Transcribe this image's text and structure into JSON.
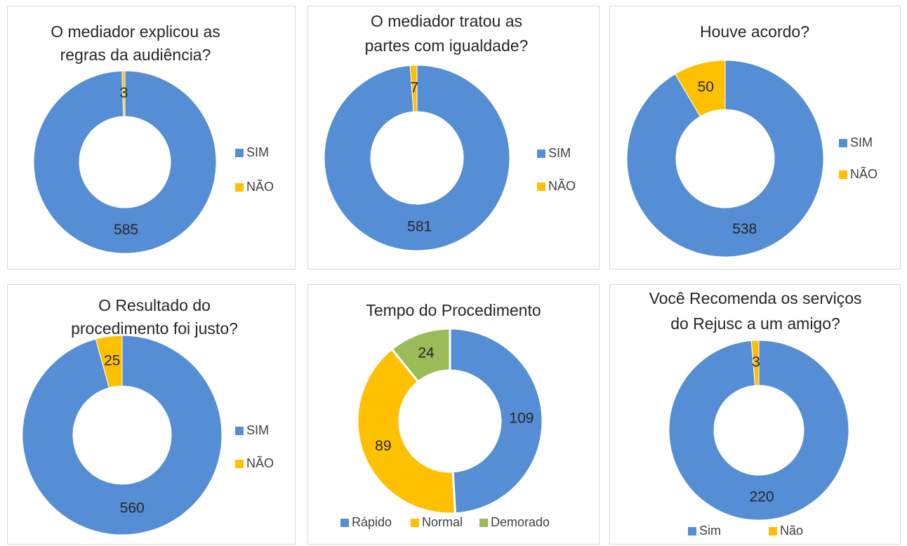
{
  "chart_data": [
    {
      "type": "donut",
      "title": [
        "O mediador explicou as",
        "regras da audiência?"
      ],
      "categories": [
        "SIM",
        "NÃO"
      ],
      "values": [
        585,
        3
      ],
      "colors": [
        "#558ed5",
        "#ffc000"
      ],
      "legend": "right"
    },
    {
      "type": "donut",
      "title": [
        "O mediador tratou as",
        "partes com igualdade?"
      ],
      "categories": [
        "SIM",
        "NÃO"
      ],
      "values": [
        581,
        7
      ],
      "colors": [
        "#558ed5",
        "#ffc000"
      ],
      "legend": "right"
    },
    {
      "type": "donut",
      "title": [
        "Houve acordo?"
      ],
      "categories": [
        "SIM",
        "NÃO"
      ],
      "values": [
        538,
        50
      ],
      "colors": [
        "#558ed5",
        "#ffc000"
      ],
      "legend": "right"
    },
    {
      "type": "donut",
      "title": [
        "O Resultado do",
        "procedimento foi justo?"
      ],
      "categories": [
        "SIM",
        "NÃO"
      ],
      "values": [
        560,
        25
      ],
      "colors": [
        "#558ed5",
        "#ffc000"
      ],
      "legend": "right"
    },
    {
      "type": "donut",
      "title": [
        "Tempo do Procedimento"
      ],
      "categories": [
        "Rápido",
        "Normal",
        "Demorado"
      ],
      "values": [
        109,
        89,
        24
      ],
      "colors": [
        "#558ed5",
        "#ffc000",
        "#9bbb59"
      ],
      "legend": "bottom"
    },
    {
      "type": "donut",
      "title": [
        "Você Recomenda os serviços",
        "do Rejusc a um amigo?"
      ],
      "categories": [
        "Sim",
        "Não"
      ],
      "values": [
        220,
        3
      ],
      "colors": [
        "#558ed5",
        "#ffc000"
      ],
      "legend": "bottom"
    }
  ]
}
